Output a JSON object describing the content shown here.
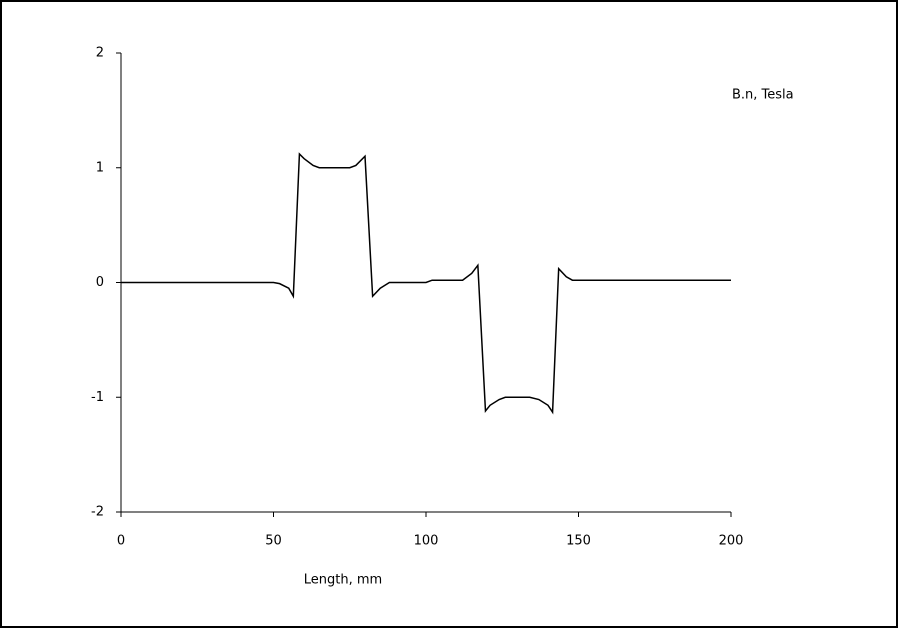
{
  "chart_data": {
    "type": "line",
    "title": "B.n, Tesla",
    "x_label": "Length, mm",
    "x": [
      0,
      50,
      52,
      55,
      56.5,
      58.5,
      60,
      63,
      65,
      75,
      77,
      80,
      82.5,
      85,
      88,
      100,
      102,
      112,
      115,
      117,
      119.5,
      121,
      124,
      126,
      134,
      137,
      140,
      141.5,
      143.5,
      146,
      148,
      150,
      200
    ],
    "series": [
      {
        "color": "#000000",
        "values": [
          0,
          0,
          -0.01,
          -0.05,
          -0.12,
          1.12,
          1.08,
          1.02,
          1,
          1,
          1.02,
          1.1,
          -0.12,
          -0.05,
          0,
          0,
          0.02,
          0.02,
          0.08,
          0.15,
          -1.12,
          -1.07,
          -1.02,
          -1,
          -1,
          -1.02,
          -1.07,
          -1.13,
          0.12,
          0.05,
          0.02,
          0.02,
          0.02
        ]
      }
    ],
    "xlim": [
      0,
      200
    ],
    "xticks": [
      0,
      50,
      100,
      150,
      200
    ],
    "ylim": [
      -2,
      2
    ],
    "yticks": [
      -2,
      -1,
      0,
      1,
      2
    ],
    "grid": false
  }
}
